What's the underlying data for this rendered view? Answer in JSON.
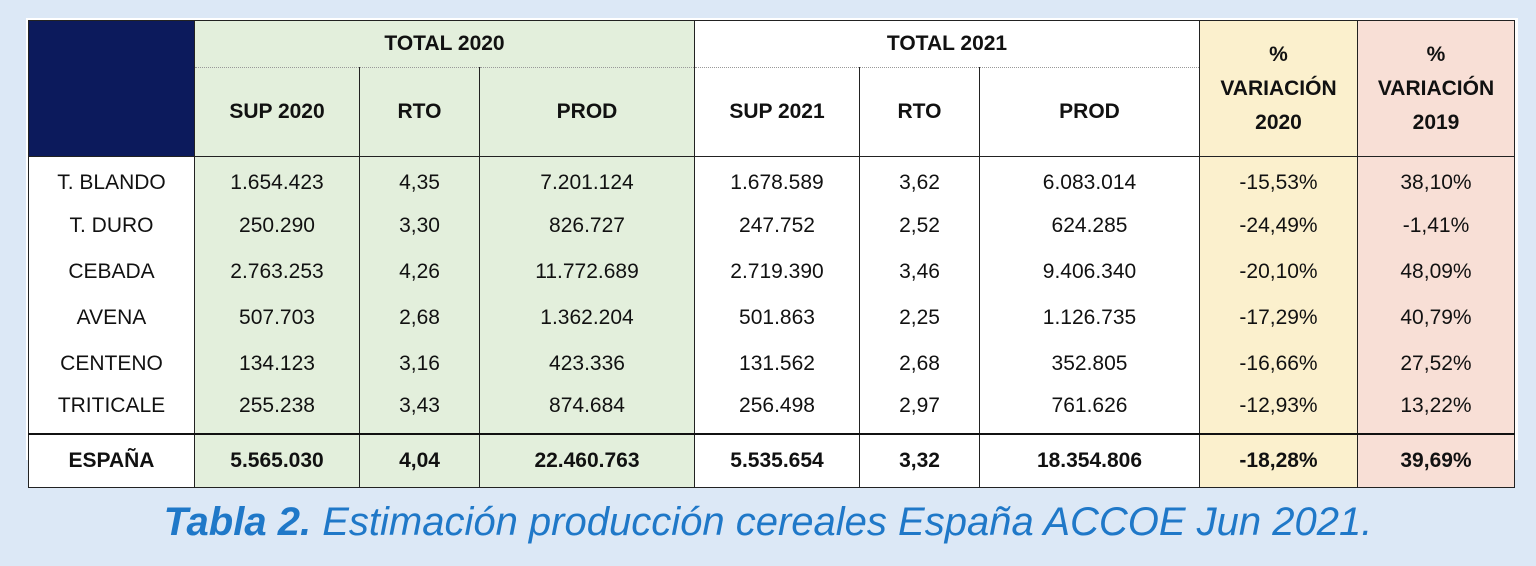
{
  "table": {
    "group_headers": [
      "TOTAL 2020",
      "TOTAL 2021"
    ],
    "variation_2020": [
      "%",
      "VARIACIÓN",
      "2020"
    ],
    "variation_2019": [
      "%",
      "VARIACIÓN",
      "2019"
    ],
    "sub_headers": [
      "SUP 2020",
      "RTO",
      "PROD",
      "SUP 2021",
      "RTO",
      "PROD"
    ],
    "rows": [
      [
        "T. BLANDO",
        "1.654.423",
        "4,35",
        "7.201.124",
        "1.678.589",
        "3,62",
        "6.083.014",
        "-15,53%",
        "38,10%"
      ],
      [
        "T. DURO",
        "250.290",
        "3,30",
        "826.727",
        "247.752",
        "2,52",
        "624.285",
        "-24,49%",
        "-1,41%"
      ],
      [
        "CEBADA",
        "2.763.253",
        "4,26",
        "11.772.689",
        "2.719.390",
        "3,46",
        "9.406.340",
        "-20,10%",
        "48,09%"
      ],
      [
        "AVENA",
        "507.703",
        "2,68",
        "1.362.204",
        "501.863",
        "2,25",
        "1.126.735",
        "-17,29%",
        "40,79%"
      ],
      [
        "CENTENO",
        "134.123",
        "3,16",
        "423.336",
        "131.562",
        "2,68",
        "352.805",
        "-16,66%",
        "27,52%"
      ],
      [
        "TRITICALE",
        "255.238",
        "3,43",
        "874.684",
        "256.498",
        "2,97",
        "761.626",
        "-12,93%",
        "13,22%"
      ]
    ],
    "total": [
      "ESPAÑA",
      "5.565.030",
      "4,04",
      "22.460.763",
      "5.535.654",
      "3,32",
      "18.354.806",
      "-18,28%",
      "39,69%"
    ]
  },
  "caption": {
    "label": "Tabla 2.",
    "text": " Estimación producción cereales España ACCOE Jun 2021."
  },
  "colors": {
    "corner": "#0c1a5c",
    "total_2020": "#e3efdc",
    "total_2021": "#ffffff",
    "variation_2020": "#fbf0cd",
    "variation_2019": "#f8dfd6",
    "caption": "#1f78c8",
    "background": "#dce8f6"
  }
}
